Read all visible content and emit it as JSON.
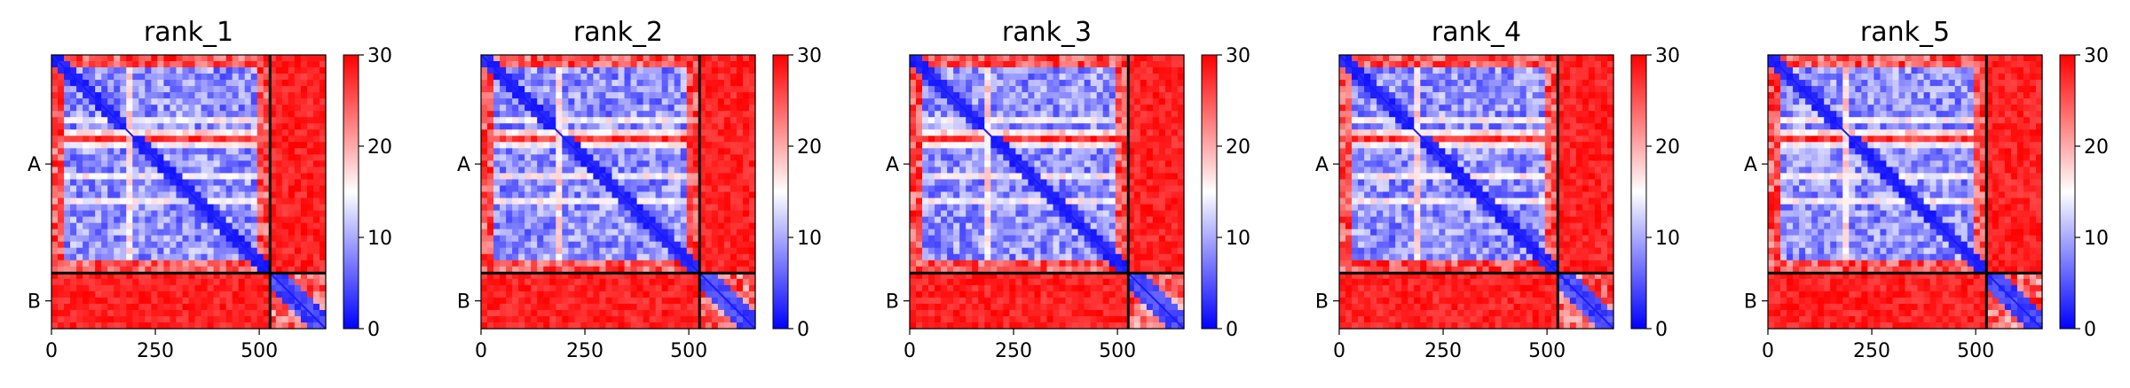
{
  "chart_data": [
    {
      "type": "heatmap",
      "title": "rank_1",
      "x_ticks": [
        0,
        250,
        500
      ],
      "y_labels": [
        "A",
        "B"
      ],
      "colorbar": {
        "ticks": [
          0,
          10,
          20,
          30
        ],
        "range": [
          0,
          30
        ],
        "colors": [
          "#0000ff",
          "#ffffff",
          "#ff0000"
        ]
      },
      "domain": [
        0,
        660
      ],
      "chain_boundary": 526,
      "interchain": "high",
      "grid": false
    },
    {
      "type": "heatmap",
      "title": "rank_2",
      "x_ticks": [
        0,
        250,
        500
      ],
      "y_labels": [
        "A",
        "B"
      ],
      "colorbar": {
        "ticks": [
          0,
          10,
          20,
          30
        ],
        "range": [
          0,
          30
        ],
        "colors": [
          "#0000ff",
          "#ffffff",
          "#ff0000"
        ]
      },
      "domain": [
        0,
        660
      ],
      "chain_boundary": 526,
      "interchain": "high",
      "grid": false
    },
    {
      "type": "heatmap",
      "title": "rank_3",
      "x_ticks": [
        0,
        250,
        500
      ],
      "y_labels": [
        "A",
        "B"
      ],
      "colorbar": {
        "ticks": [
          0,
          10,
          20,
          30
        ],
        "range": [
          0,
          30
        ],
        "colors": [
          "#0000ff",
          "#ffffff",
          "#ff0000"
        ]
      },
      "domain": [
        0,
        660
      ],
      "chain_boundary": 526,
      "interchain": "high",
      "grid": false
    },
    {
      "type": "heatmap",
      "title": "rank_4",
      "x_ticks": [
        0,
        250,
        500
      ],
      "y_labels": [
        "A",
        "B"
      ],
      "colorbar": {
        "ticks": [
          0,
          10,
          20,
          30
        ],
        "range": [
          0,
          30
        ],
        "colors": [
          "#0000ff",
          "#ffffff",
          "#ff0000"
        ]
      },
      "domain": [
        0,
        660
      ],
      "chain_boundary": 526,
      "interchain": "high",
      "grid": false
    },
    {
      "type": "heatmap",
      "title": "rank_5",
      "x_ticks": [
        0,
        250,
        500
      ],
      "y_labels": [
        "A",
        "B"
      ],
      "colorbar": {
        "ticks": [
          0,
          10,
          20,
          30
        ],
        "range": [
          0,
          30
        ],
        "colors": [
          "#0000ff",
          "#ffffff",
          "#ff0000"
        ]
      },
      "domain": [
        0,
        660
      ],
      "chain_boundary": 526,
      "interchain": "high",
      "grid": false
    }
  ]
}
